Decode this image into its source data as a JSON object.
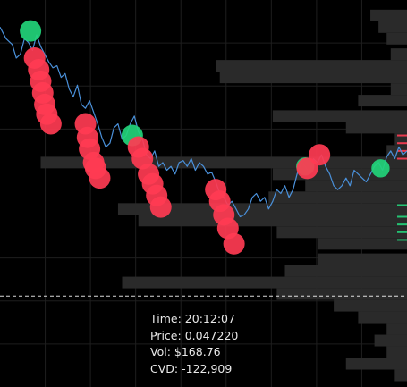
{
  "tooltip": {
    "time_label": "Time:",
    "time_value": "20:12:07",
    "price_label": "Price:",
    "price_value": "0.047220",
    "vol_label": "Vol:",
    "vol_value": "$168.76",
    "cvd_label": "CVD:",
    "cvd_value": "-122,909"
  },
  "colors": {
    "background": "#000000",
    "grid": "#1e1e1e",
    "price_line": "#4a90d9",
    "profile": "#2a2a2a",
    "buy": "#22d47a",
    "sell": "#ff3b52",
    "crosshair": "#ffffff"
  },
  "chart_data": {
    "type": "line",
    "title": "",
    "xlabel": "",
    "ylabel": "",
    "grid": true,
    "legend": "none",
    "x_range": [
      0,
      100
    ],
    "y_range": [
      0,
      100
    ],
    "crosshair_level": 23.5,
    "series": [
      {
        "values": [
          [
            0,
            93
          ],
          [
            1.5,
            90
          ],
          [
            3,
            88.5
          ],
          [
            4,
            85
          ],
          [
            5,
            86
          ],
          [
            6,
            90
          ],
          [
            7,
            89
          ],
          [
            8,
            87
          ],
          [
            9,
            91
          ],
          [
            10,
            88
          ],
          [
            11,
            86
          ],
          [
            12,
            84
          ],
          [
            13,
            82.5
          ],
          [
            14,
            83
          ],
          [
            15,
            80
          ],
          [
            16,
            81
          ],
          [
            17,
            77
          ],
          [
            18,
            75
          ],
          [
            19,
            78
          ],
          [
            20,
            73
          ],
          [
            21,
            72
          ],
          [
            22,
            74
          ],
          [
            23,
            71
          ],
          [
            24,
            68
          ],
          [
            25,
            64.5
          ],
          [
            26,
            62
          ],
          [
            27,
            63
          ],
          [
            28,
            67
          ],
          [
            29,
            68
          ],
          [
            30,
            64
          ],
          [
            31,
            65
          ],
          [
            32,
            68
          ],
          [
            33,
            70
          ],
          [
            34,
            66
          ],
          [
            35,
            64
          ],
          [
            36,
            60
          ],
          [
            37,
            59
          ],
          [
            38,
            61
          ],
          [
            39,
            57
          ],
          [
            40,
            58
          ],
          [
            41,
            56
          ],
          [
            42,
            57
          ],
          [
            43,
            55
          ],
          [
            44,
            58
          ],
          [
            45,
            58.5
          ],
          [
            46,
            57
          ],
          [
            47,
            59
          ],
          [
            48,
            56
          ],
          [
            49,
            58
          ],
          [
            50,
            57
          ],
          [
            51,
            55
          ],
          [
            52,
            55.5
          ],
          [
            53,
            53
          ],
          [
            54,
            50
          ],
          [
            55,
            49
          ],
          [
            56,
            47
          ],
          [
            57,
            48
          ],
          [
            58,
            46
          ],
          [
            59,
            44
          ],
          [
            60,
            44.5
          ],
          [
            61,
            46
          ],
          [
            62,
            49
          ],
          [
            63,
            50
          ],
          [
            64,
            48
          ],
          [
            65,
            49
          ],
          [
            66,
            46
          ],
          [
            67,
            48
          ],
          [
            68,
            51
          ],
          [
            69,
            50
          ],
          [
            70,
            52
          ],
          [
            71,
            49
          ],
          [
            72,
            51
          ],
          [
            73,
            55
          ],
          [
            74,
            58
          ],
          [
            75,
            57
          ],
          [
            76,
            55
          ],
          [
            77,
            59
          ],
          [
            78,
            58
          ],
          [
            79,
            60
          ],
          [
            80,
            57
          ],
          [
            81,
            55
          ],
          [
            82,
            52
          ],
          [
            83,
            51
          ],
          [
            84,
            52
          ],
          [
            85,
            54
          ],
          [
            86,
            52
          ],
          [
            87,
            56
          ],
          [
            88,
            55
          ],
          [
            89,
            54
          ],
          [
            90,
            53
          ],
          [
            91,
            55
          ],
          [
            92,
            57
          ],
          [
            93,
            58
          ],
          [
            94,
            56
          ],
          [
            95,
            59.5
          ],
          [
            96,
            61
          ],
          [
            97,
            59
          ],
          [
            98,
            62
          ],
          [
            99,
            60
          ],
          [
            100,
            61
          ]
        ]
      }
    ],
    "markers": [
      {
        "side": "buy",
        "x": 7.5,
        "y": 92,
        "size": 1.0
      },
      {
        "side": "sell",
        "x": 8.5,
        "y": 85,
        "size": 1.0
      },
      {
        "side": "sell",
        "x": 9.5,
        "y": 82,
        "size": 1.0
      },
      {
        "side": "sell",
        "x": 10,
        "y": 79,
        "size": 1.0
      },
      {
        "side": "sell",
        "x": 10.5,
        "y": 76,
        "size": 1.0
      },
      {
        "side": "sell",
        "x": 11,
        "y": 73,
        "size": 1.0
      },
      {
        "side": "sell",
        "x": 11.5,
        "y": 70.5,
        "size": 1.0
      },
      {
        "side": "sell",
        "x": 12.5,
        "y": 68,
        "size": 1.0
      },
      {
        "side": "sell",
        "x": 21,
        "y": 68,
        "size": 1.0
      },
      {
        "side": "sell",
        "x": 21.5,
        "y": 64.5,
        "size": 1.0
      },
      {
        "side": "sell",
        "x": 22,
        "y": 61.5,
        "size": 1.0
      },
      {
        "side": "sell",
        "x": 23,
        "y": 58,
        "size": 1.0
      },
      {
        "side": "sell",
        "x": 23.5,
        "y": 56.5,
        "size": 1.0
      },
      {
        "side": "sell",
        "x": 24.5,
        "y": 54,
        "size": 1.0
      },
      {
        "side": "buy",
        "x": 32.5,
        "y": 65,
        "size": 1.0
      },
      {
        "side": "sell",
        "x": 34,
        "y": 62,
        "size": 1.0
      },
      {
        "side": "sell",
        "x": 35,
        "y": 59,
        "size": 1.0
      },
      {
        "side": "sell",
        "x": 36.5,
        "y": 55,
        "size": 1.0
      },
      {
        "side": "sell",
        "x": 37.5,
        "y": 52.5,
        "size": 1.0
      },
      {
        "side": "sell",
        "x": 38.5,
        "y": 49.5,
        "size": 1.0
      },
      {
        "side": "sell",
        "x": 39.5,
        "y": 46.5,
        "size": 1.0
      },
      {
        "side": "sell",
        "x": 53,
        "y": 51,
        "size": 1.0
      },
      {
        "side": "sell",
        "x": 54,
        "y": 48,
        "size": 1.0
      },
      {
        "side": "sell",
        "x": 55,
        "y": 44.5,
        "size": 1.0
      },
      {
        "side": "sell",
        "x": 56,
        "y": 41,
        "size": 1.0
      },
      {
        "side": "sell",
        "x": 57.5,
        "y": 37,
        "size": 1.0
      },
      {
        "side": "buy",
        "x": 75,
        "y": 57,
        "size": 0.85
      },
      {
        "side": "sell",
        "x": 75.5,
        "y": 56.5,
        "size": 1.0
      },
      {
        "side": "sell",
        "x": 78.5,
        "y": 60,
        "size": 1.0
      },
      {
        "side": "buy",
        "x": 93.5,
        "y": 56.5,
        "size": 0.85
      }
    ],
    "volume_profile": [
      {
        "level": 96,
        "value": 9
      },
      {
        "level": 93,
        "value": 7
      },
      {
        "level": 90,
        "value": 5
      },
      {
        "level": 86,
        "value": 4
      },
      {
        "level": 83,
        "value": 47
      },
      {
        "level": 80,
        "value": 46
      },
      {
        "level": 77,
        "value": 4
      },
      {
        "level": 74,
        "value": 12
      },
      {
        "level": 70,
        "value": 33
      },
      {
        "level": 67,
        "value": 15
      },
      {
        "level": 64,
        "value": 3
      },
      {
        "level": 61,
        "value": 5
      },
      {
        "level": 58,
        "value": 90
      },
      {
        "level": 55,
        "value": 33
      },
      {
        "level": 52,
        "value": 25
      },
      {
        "level": 49,
        "value": 34
      },
      {
        "level": 46,
        "value": 71
      },
      {
        "level": 43,
        "value": 66
      },
      {
        "level": 40,
        "value": 32
      },
      {
        "level": 37,
        "value": 22
      },
      {
        "level": 33,
        "value": 22
      },
      {
        "level": 30,
        "value": 30
      },
      {
        "level": 27,
        "value": 70
      },
      {
        "level": 24,
        "value": 32
      },
      {
        "level": 21,
        "value": 18
      },
      {
        "level": 18,
        "value": 12
      },
      {
        "level": 15,
        "value": 5
      },
      {
        "level": 12,
        "value": 8
      },
      {
        "level": 9,
        "value": 5
      },
      {
        "level": 6,
        "value": 15
      },
      {
        "level": 3,
        "value": 3
      }
    ],
    "edge_ticks": [
      {
        "side": "sell",
        "level": 65
      },
      {
        "side": "sell",
        "level": 63
      },
      {
        "side": "sell",
        "level": 61
      },
      {
        "side": "sell",
        "level": 59
      },
      {
        "side": "buy",
        "level": 47
      },
      {
        "side": "buy",
        "level": 44
      },
      {
        "side": "buy",
        "level": 42
      },
      {
        "side": "buy",
        "level": 40
      },
      {
        "side": "buy",
        "level": 38
      }
    ]
  }
}
